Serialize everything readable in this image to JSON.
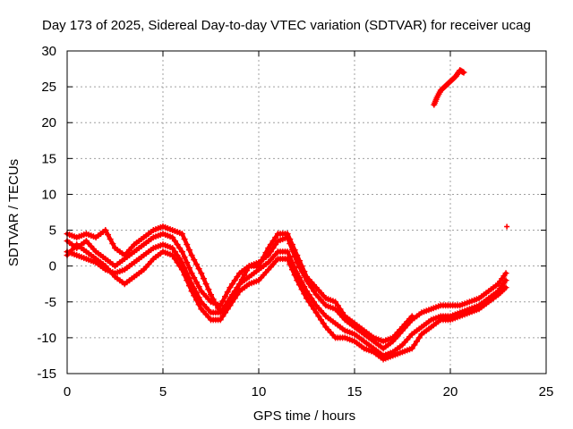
{
  "chart_data": {
    "type": "scatter",
    "title": "Day 173 of 2025, Sidereal Day-to-day VTEC variation (SDTVAR) for receiver ucag",
    "xlabel": "GPS time / hours",
    "ylabel": "SDTVAR / TECUs",
    "xlim": [
      0,
      25
    ],
    "ylim": [
      -15,
      30
    ],
    "x_ticks": [
      "0",
      "5",
      "10",
      "15",
      "20",
      "25"
    ],
    "y_ticks": [
      "-15",
      "-10",
      "-5",
      "0",
      "5",
      "10",
      "15",
      "20",
      "25",
      "30"
    ],
    "grid": true,
    "marker": "+",
    "marker_color": "#ff0000",
    "series": [
      {
        "name": "track-a",
        "x": [
          0.0,
          0.5,
          1.0,
          1.5,
          2.0,
          2.5,
          3.0,
          3.5,
          4.0,
          4.5,
          5.0,
          5.5,
          6.0,
          6.5,
          7.0,
          7.5,
          8.0,
          8.5,
          9.0,
          9.5,
          10.0,
          10.5,
          11.0,
          11.5,
          12.0,
          12.5,
          13.0,
          13.5,
          14.0,
          14.5,
          15.0,
          15.5,
          16.0,
          16.5,
          17.0,
          17.5,
          18.0,
          18.5,
          19.0,
          19.5,
          20.0,
          20.5,
          21.0,
          21.5,
          22.0,
          22.5,
          22.9
        ],
        "y": [
          3.5,
          2.5,
          3.5,
          2.0,
          1.0,
          0.0,
          1.0,
          2.0,
          3.0,
          4.0,
          4.5,
          4.0,
          2.0,
          -1.0,
          -3.5,
          -5.0,
          -5.5,
          -3.0,
          -1.0,
          0.0,
          0.5,
          1.5,
          3.5,
          4.0,
          0.5,
          -2.0,
          -4.0,
          -5.5,
          -6.0,
          -7.5,
          -8.5,
          -9.5,
          -10.5,
          -11.5,
          -10.5,
          -9.0,
          -7.5,
          -6.5,
          -6.0,
          -5.5,
          -5.5,
          -5.5,
          -5.0,
          -4.5,
          -3.5,
          -2.5,
          -1.0
        ]
      },
      {
        "name": "track-b",
        "x": [
          0.0,
          0.5,
          1.0,
          1.5,
          2.0,
          2.5,
          3.0,
          3.5,
          4.0,
          4.5,
          5.0,
          5.5,
          6.0,
          6.5,
          7.0,
          7.5,
          8.0,
          8.5,
          9.0,
          9.5,
          10.0,
          10.5,
          11.0,
          11.5,
          12.0,
          12.5,
          13.0,
          13.5,
          14.0,
          14.5,
          15.0,
          15.5,
          16.0,
          16.5,
          17.0,
          17.5,
          18.0,
          18.5,
          19.0,
          19.5,
          20.0,
          20.5,
          21.0,
          21.5,
          22.0,
          22.5,
          22.9
        ],
        "y": [
          2.0,
          1.5,
          1.0,
          0.5,
          -0.5,
          -1.0,
          -0.5,
          0.5,
          1.5,
          2.5,
          3.0,
          2.5,
          0.5,
          -2.5,
          -5.0,
          -6.5,
          -6.5,
          -4.5,
          -2.5,
          -1.5,
          -0.5,
          0.5,
          2.0,
          2.0,
          -1.0,
          -3.5,
          -5.5,
          -7.0,
          -8.0,
          -9.0,
          -9.5,
          -10.5,
          -11.5,
          -12.5,
          -12.0,
          -11.0,
          -9.5,
          -8.5,
          -7.5,
          -7.0,
          -7.0,
          -6.5,
          -6.0,
          -5.5,
          -4.5,
          -3.5,
          -2.0
        ]
      },
      {
        "name": "track-c",
        "x": [
          0.0,
          0.5,
          1.0,
          1.5,
          2.0,
          2.5,
          3.0,
          3.5,
          4.0,
          4.5,
          5.0,
          5.5,
          6.0,
          6.5,
          7.0,
          7.5,
          8.0,
          8.5,
          9.0,
          9.5,
          10.0,
          10.5,
          11.0,
          11.5,
          12.0,
          12.5,
          13.0,
          13.5,
          14.0,
          14.5,
          15.0,
          15.5,
          16.0,
          16.5,
          17.0,
          17.5,
          18.0
        ],
        "y": [
          4.5,
          4.0,
          4.5,
          4.0,
          5.0,
          2.5,
          1.5,
          3.0,
          4.0,
          5.0,
          5.5,
          5.0,
          4.5,
          1.5,
          -1.0,
          -4.0,
          -6.5,
          -5.5,
          -2.5,
          0.0,
          0.0,
          2.5,
          4.5,
          4.5,
          1.5,
          -1.5,
          -3.0,
          -4.5,
          -5.0,
          -7.0,
          -8.0,
          -9.0,
          -10.0,
          -10.5,
          -10.0,
          -8.5,
          -7.0
        ]
      },
      {
        "name": "track-d",
        "x": [
          0.0,
          0.5,
          1.0,
          1.5,
          2.0,
          2.5,
          3.0,
          3.5,
          4.0,
          4.5,
          5.0,
          5.5,
          6.0,
          6.5,
          7.0,
          7.5,
          8.0,
          8.5,
          9.0,
          9.5,
          10.0,
          10.5,
          11.0,
          11.5,
          12.0,
          12.5,
          13.0,
          13.5,
          14.0,
          14.5,
          15.0,
          15.5,
          16.0,
          16.5,
          17.0,
          17.5,
          18.0,
          18.5,
          19.0,
          19.5,
          20.0,
          20.5,
          21.0,
          21.5,
          22.0,
          22.5,
          22.9
        ],
        "y": [
          1.5,
          3.0,
          2.0,
          1.0,
          0.0,
          -1.5,
          -2.5,
          -1.5,
          -0.5,
          1.0,
          2.0,
          1.5,
          -0.5,
          -3.5,
          -6.0,
          -7.5,
          -7.5,
          -5.5,
          -3.5,
          -2.5,
          -2.0,
          -0.5,
          1.0,
          1.0,
          -2.0,
          -4.5,
          -6.5,
          -8.5,
          -10.0,
          -10.0,
          -10.5,
          -11.5,
          -12.0,
          -13.0,
          -12.5,
          -12.0,
          -11.5,
          -9.5,
          -8.5,
          -7.5,
          -7.5,
          -7.0,
          -6.5,
          -6.0,
          -5.0,
          -4.0,
          -3.0
        ]
      },
      {
        "name": "late-arc",
        "x": [
          19.15,
          19.3,
          19.5,
          19.7,
          19.9,
          20.1,
          20.3,
          20.5,
          20.7
        ],
        "y": [
          22.5,
          23.5,
          24.5,
          25.0,
          25.5,
          26.0,
          26.5,
          27.3,
          27.0
        ]
      },
      {
        "name": "outlier",
        "x": [
          22.95
        ],
        "y": [
          5.5
        ]
      }
    ]
  }
}
